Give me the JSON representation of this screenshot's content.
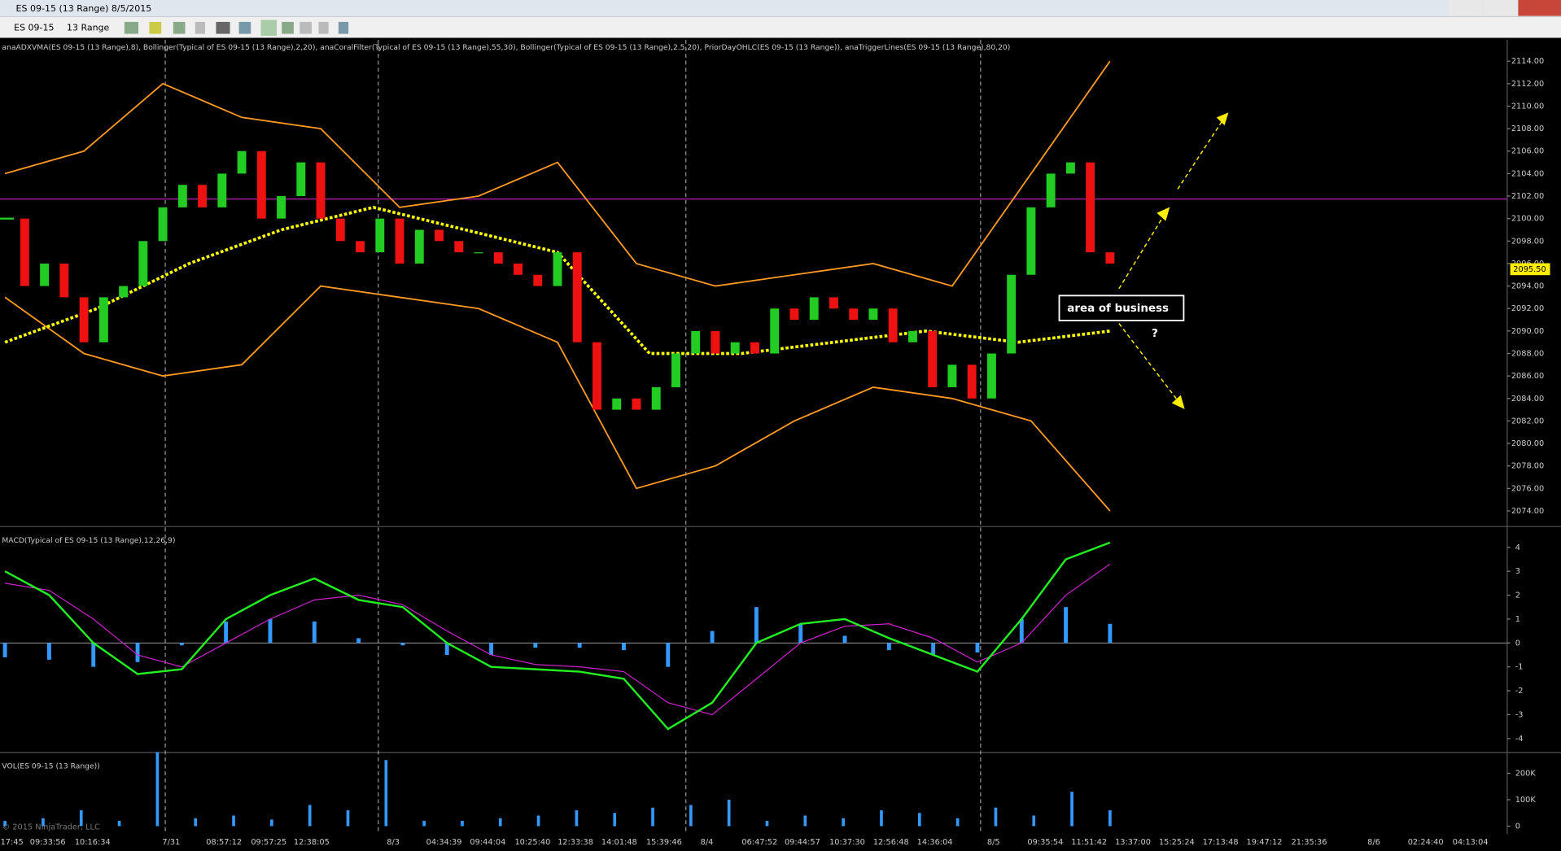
{
  "window": {
    "title": "ES 09-15 (13 Range)  8/5/2015",
    "instrument": "ES 09-15",
    "period": "13 Range"
  },
  "annotation": {
    "box": "area of business",
    "question": "?"
  },
  "copyright": "© 2015 NinjaTrader, LLC",
  "time_labels": [
    "17:45",
    "09:33:56",
    "10:16:34",
    "7/31",
    "08:57:12",
    "09:57:25",
    "12:38:05",
    "8/3",
    "04:34:39",
    "09:44:04",
    "10:25:40",
    "12:33:38",
    "14:01:48",
    "15:39:46",
    "8/4",
    "06:47:52",
    "09:44:57",
    "10:37:30",
    "12:56:48",
    "14:36:04",
    "8/5",
    "09:35:54",
    "11:51:42",
    "13:37:00",
    "15:25:24",
    "17:13:48",
    "19:47:12",
    "21:35:36",
    "8/6",
    "02:24:40",
    "04:13:04"
  ],
  "chart_data": [
    {
      "type": "candlestick",
      "title": "anaADXVMA(ES 09-15 (13 Range),8), Bollinger(Typical of ES 09-15 (13 Range),2,20), anaCoralFilter(Typical of ES 09-15 (13 Range),55,30), Bollinger(Typical of ES 09-15 (13 Range),2.5,20), PriorDayOHLC(ES 09-15 (13 Range)), anaTriggerLines(ES 09-15 (13 Range),80,20)",
      "values": [
        2100,
        2094,
        2096,
        2093,
        2089,
        2093,
        2094,
        2098,
        2101,
        2103,
        2101,
        2104,
        2106,
        2100,
        2102,
        2105,
        2100,
        2098,
        2097,
        2100,
        2096,
        2099,
        2098,
        2097,
        2097,
        2096,
        2095,
        2094,
        2097,
        2089,
        2083,
        2084,
        2083,
        2085,
        2088,
        2090,
        2088,
        2089,
        2088,
        2092,
        2091,
        2093,
        2092,
        2091,
        2092,
        2089,
        2090,
        2085,
        2087,
        2084,
        2088,
        2095,
        2101,
        2104,
        2105,
        2097,
        2096
      ],
      "up_color": "#22cc22",
      "down_color": "#ee1111",
      "lines": [
        {
          "color": "#ff9922",
          "values": [
            2104,
            2106,
            2112,
            2109,
            2108,
            2101,
            2102,
            2105,
            2096,
            2094,
            2095,
            2096,
            2094,
            2104,
            2114
          ]
        },
        {
          "color": "#ff9922",
          "values": [
            2093,
            2088,
            2086,
            2087,
            2094,
            2093,
            2092,
            2089,
            2076,
            2078,
            2082,
            2085,
            2084,
            2082,
            2074
          ]
        },
        {
          "color": "#ffff00",
          "values": [
            2089,
            2092,
            2096,
            2099,
            2101,
            2099,
            2097,
            2088,
            2088,
            2089,
            2090,
            2089,
            2090
          ]
        }
      ],
      "last_price": {
        "value": 2095.5,
        "label": "2095.50"
      },
      "ylim": [
        2072.7,
        2115.9
      ],
      "yticks": [
        {
          "value": 2074,
          "label": "2074.00"
        },
        {
          "value": 2076,
          "label": "2076.00"
        },
        {
          "value": 2078,
          "label": "2078.00"
        },
        {
          "value": 2080,
          "label": "2080.00"
        },
        {
          "value": 2082,
          "label": "2082.00"
        },
        {
          "value": 2084,
          "label": "2084.00"
        },
        {
          "value": 2086,
          "label": "2086.00"
        },
        {
          "value": 2088,
          "label": "2088.00"
        },
        {
          "value": 2090,
          "label": "2090.00"
        },
        {
          "value": 2092,
          "label": "2092.00"
        },
        {
          "value": 2094,
          "label": "2094.00"
        },
        {
          "value": 2096,
          "label": "2096.00"
        },
        {
          "value": 2098,
          "label": "2098.00"
        },
        {
          "value": 2100,
          "label": "2100.00"
        },
        {
          "value": 2102,
          "label": "2102.00"
        },
        {
          "value": 2104,
          "label": "2104.00"
        },
        {
          "value": 2106,
          "label": "2106.00"
        },
        {
          "value": 2108,
          "label": "2108.00"
        },
        {
          "value": 2110,
          "label": "2110.00"
        },
        {
          "value": 2112,
          "label": "2112.00"
        },
        {
          "value": 2114,
          "label": "2114.00"
        }
      ]
    },
    {
      "type": "macd",
      "title": "MACD(Typical of ES 09-15 (13 Range),12,26,9)",
      "macd": {
        "color": "#22ee22",
        "values": [
          3,
          2,
          0,
          -1.3,
          -1.1,
          1,
          2,
          2.7,
          1.8,
          1.5,
          0,
          -1,
          -1.1,
          -1.2,
          -1.5,
          -3.6,
          -2.5,
          0,
          0.8,
          1,
          0.2,
          -0.5,
          -1.2,
          1,
          3.5,
          4.2
        ]
      },
      "signal": {
        "color": "#cc22cc",
        "values": [
          2.5,
          2.2,
          1,
          -0.5,
          -1,
          0,
          1,
          1.8,
          2,
          1.6,
          0.5,
          -0.5,
          -0.9,
          -1,
          -1.2,
          -2.5,
          -3,
          -1.5,
          0,
          0.7,
          0.8,
          0.2,
          -0.8,
          0,
          2,
          3.3
        ]
      },
      "histogram": {
        "color": "#3399ff",
        "values": [
          -0.6,
          -0.7,
          -1,
          -0.8,
          -0.1,
          0.9,
          1,
          0.9,
          0.2,
          -0.1,
          -0.5,
          -0.5,
          -0.2,
          -0.2,
          -0.3,
          -1,
          0.5,
          1.5,
          0.8,
          0.3,
          -0.3,
          -0.5,
          -0.4,
          1,
          1.5,
          0.8
        ]
      },
      "ylim": [
        -4.54,
        4.83
      ],
      "yticks": [
        -4,
        -3,
        -2,
        -1,
        0,
        1,
        2,
        3,
        4
      ]
    },
    {
      "type": "bar",
      "title": "VOL(ES 09-15 (13 Range))",
      "color": "#3399ff",
      "values": [
        20000,
        30000,
        60000,
        20000,
        280000,
        30000,
        40000,
        25000,
        80000,
        60000,
        250000,
        20000,
        20000,
        30000,
        40000,
        60000,
        50000,
        70000,
        80000,
        100000,
        20000,
        40000,
        30000,
        60000,
        50000,
        30000,
        70000,
        40000,
        130000,
        60000
      ],
      "ylim": [
        -30000,
        275000
      ],
      "yticks": [
        0,
        {
          "value": 100000,
          "label": "100K"
        },
        {
          "value": 200000,
          "label": "200K"
        }
      ]
    }
  ]
}
